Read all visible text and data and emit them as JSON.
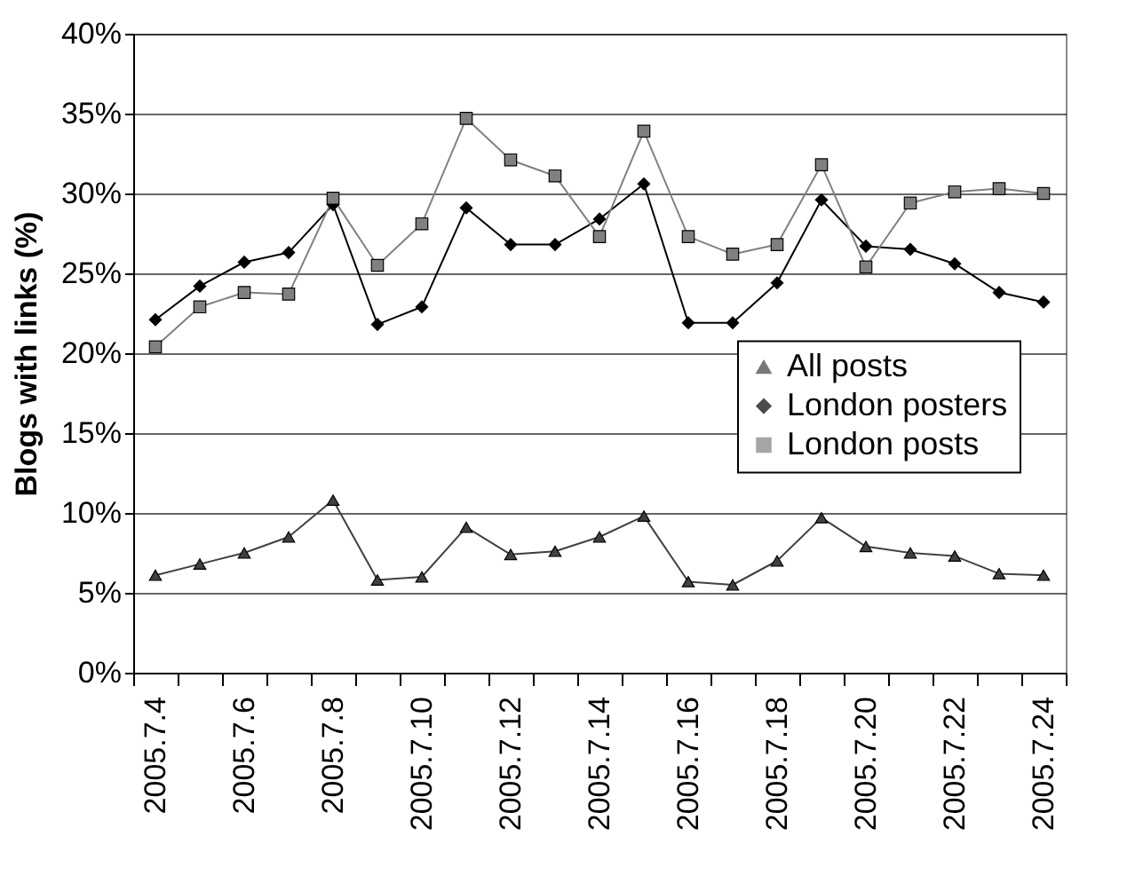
{
  "chart_data": {
    "type": "line",
    "ylabel": "Blogs with links (%)",
    "categories": [
      "2005.7.4",
      null,
      "2005.7.6",
      null,
      "2005.7.8",
      null,
      "2005.7.10",
      null,
      "2005.7.12",
      null,
      "2005.7.14",
      null,
      "2005.7.16",
      null,
      "2005.7.18",
      null,
      "2005.7.20",
      null,
      "2005.7.22",
      null,
      "2005.7.24"
    ],
    "series": [
      {
        "name": "All posts",
        "color": "#404040",
        "marker": "triangle",
        "values": [
          6.1,
          6.8,
          7.5,
          8.5,
          10.8,
          5.8,
          6.0,
          9.1,
          7.4,
          7.6,
          8.5,
          9.8,
          5.7,
          5.5,
          7.0,
          9.7,
          7.9,
          7.5,
          7.3,
          6.2,
          6.1
        ]
      },
      {
        "name": "London posters",
        "color": "#000000",
        "marker": "diamond",
        "values": [
          22.1,
          24.2,
          25.7,
          26.3,
          29.3,
          21.8,
          22.9,
          29.1,
          26.8,
          26.8,
          28.4,
          30.6,
          21.9,
          21.9,
          24.4,
          29.6,
          26.7,
          26.5,
          25.6,
          23.8,
          23.2
        ]
      },
      {
        "name": "London posts",
        "color": "#808080",
        "marker": "square",
        "values": [
          20.4,
          22.9,
          23.8,
          23.7,
          29.7,
          25.5,
          28.1,
          34.7,
          32.1,
          31.1,
          27.3,
          33.9,
          27.3,
          26.2,
          26.8,
          31.8,
          25.4,
          29.4,
          30.1,
          30.3,
          30.0
        ]
      }
    ],
    "ylim": [
      0,
      40
    ],
    "yticks": [
      {
        "value": 0,
        "label": "0%"
      },
      {
        "value": 5,
        "label": "5%"
      },
      {
        "value": 10,
        "label": "10%"
      },
      {
        "value": 15,
        "label": "15%"
      },
      {
        "value": 20,
        "label": "20%"
      },
      {
        "value": 25,
        "label": "25%"
      },
      {
        "value": 30,
        "label": "30%"
      },
      {
        "value": 35,
        "label": "35%"
      },
      {
        "value": 40,
        "label": "40%"
      }
    ],
    "grid": "y",
    "legend": "right"
  }
}
